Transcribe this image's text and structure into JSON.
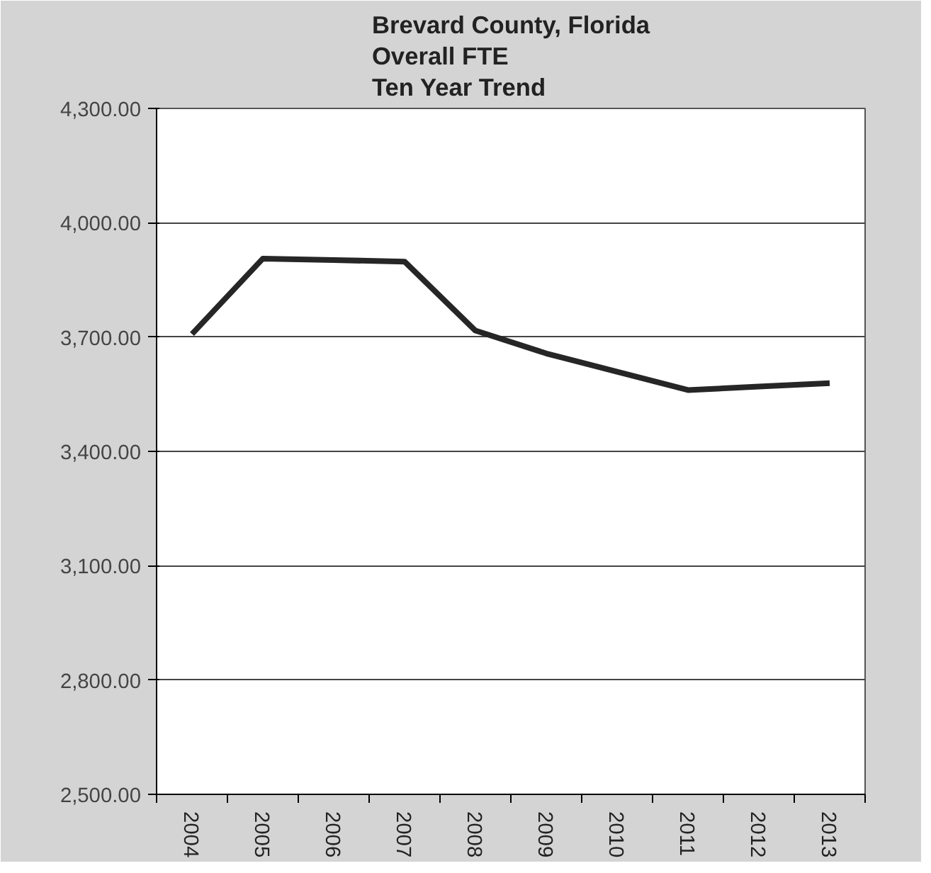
{
  "chart_data": {
    "type": "line",
    "title": "Brevard County, Florida\nOverall FTE\nTen Year Trend",
    "categories": [
      "2004",
      "2005",
      "2006",
      "2007",
      "2008",
      "2009",
      "2010",
      "2011",
      "2012",
      "2013"
    ],
    "series": [
      {
        "color": "#262626",
        "values": [
          3708,
          3906,
          3902,
          3898,
          3717,
          3657,
          3609,
          3561,
          3570,
          3579
        ]
      }
    ],
    "ylim": [
      2500,
      4300
    ],
    "yticks": [
      {
        "value": 2500,
        "label": "2,500.00"
      },
      {
        "value": 2800,
        "label": "2,800.00"
      },
      {
        "value": 3100,
        "label": "3,100.00"
      },
      {
        "value": 3400,
        "label": "3,400.00"
      },
      {
        "value": 3700,
        "label": "3,700.00"
      },
      {
        "value": 4000,
        "label": "4,000.00"
      },
      {
        "value": 4300,
        "label": "4,300.00"
      }
    ],
    "grid": "y",
    "marker": "none",
    "line_style": "solid"
  }
}
